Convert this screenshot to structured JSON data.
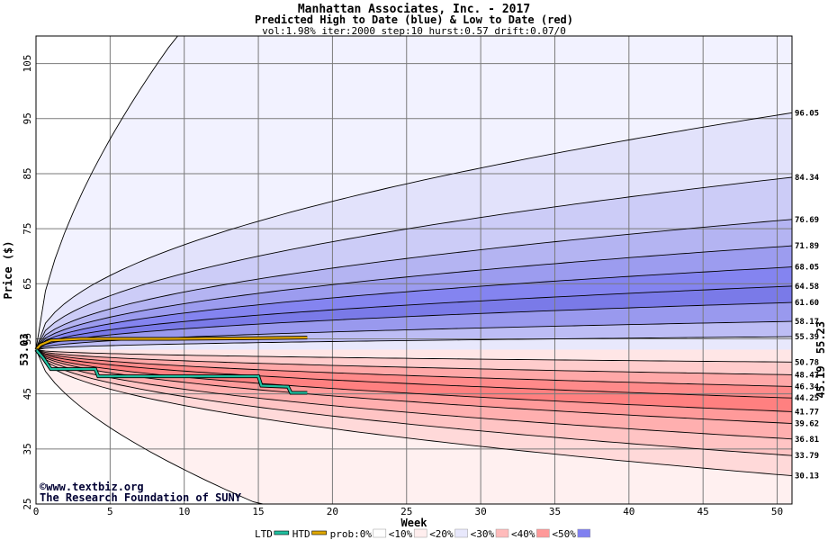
{
  "chart_data": {
    "type": "area",
    "title": "Manhattan Associates, Inc. - 2017",
    "subtitle": "Predicted High to Date (blue) &  Low to Date (red)",
    "params": "vol:1.98% iter:2000 step:10 hurst:0.57 drift:0.07/0",
    "xlabel": "Week",
    "ylabel": "Price ($)",
    "xlim": [
      0,
      51
    ],
    "ylim": [
      25,
      110
    ],
    "x_ticks": [
      0,
      5,
      10,
      15,
      20,
      25,
      30,
      35,
      40,
      45,
      50
    ],
    "y_ticks": [
      25,
      35,
      45,
      55,
      65,
      75,
      85,
      95,
      105
    ],
    "grid": true,
    "start_price": 53.03,
    "start_price_label": "53.03",
    "current_high": 55.23,
    "current_high_label": "55.23",
    "current_low": 45.19,
    "current_low_label": "45.19",
    "high_percentile_levels": [
      {
        "label": "96.05",
        "value": 96.05
      },
      {
        "label": "84.34",
        "value": 84.34
      },
      {
        "label": "76.69",
        "value": 76.69
      },
      {
        "label": "71.89",
        "value": 71.89
      },
      {
        "label": "68.05",
        "value": 68.05
      },
      {
        "label": "64.58",
        "value": 64.58
      },
      {
        "label": "61.60",
        "value": 61.6
      },
      {
        "label": "58.17",
        "value": 58.17
      },
      {
        "label": "55.39",
        "value": 55.39
      }
    ],
    "high_outer_max": 110,
    "low_percentile_levels": [
      {
        "label": "50.78",
        "value": 50.78
      },
      {
        "label": "48.47",
        "value": 48.47
      },
      {
        "label": "46.34",
        "value": 46.34
      },
      {
        "label": "44.25",
        "value": 44.25
      },
      {
        "label": "41.77",
        "value": 41.77
      },
      {
        "label": "39.62",
        "value": 39.62
      },
      {
        "label": "36.81",
        "value": 36.81
      },
      {
        "label": "33.79",
        "value": 33.79
      },
      {
        "label": "30.13",
        "value": 30.13
      }
    ],
    "low_outer_min": 25,
    "low_outer_end_week": 15,
    "actual_high_to_date": {
      "name": "HTD",
      "color": "#e0a800",
      "points": [
        [
          0,
          53.03
        ],
        [
          0.3,
          53.9
        ],
        [
          1,
          54.7
        ],
        [
          3,
          55.0
        ],
        [
          9,
          55.0
        ],
        [
          14,
          55.1
        ],
        [
          18.3,
          55.23
        ]
      ]
    },
    "actual_low_to_date": {
      "name": "LTD",
      "color": "#20c0a0",
      "points": [
        [
          0,
          53.03
        ],
        [
          0.5,
          51.5
        ],
        [
          1,
          49.5
        ],
        [
          4,
          49.5
        ],
        [
          4.2,
          48.2
        ],
        [
          15,
          48.2
        ],
        [
          15.2,
          46.5
        ],
        [
          17,
          46.3
        ],
        [
          17.2,
          45.19
        ],
        [
          18.3,
          45.19
        ]
      ]
    },
    "band_colors": {
      "high": [
        "#f2f2ff",
        "#e2e2fb",
        "#ccccf7",
        "#b4b4f2",
        "#9c9cef",
        "#8484f0",
        "#7a7ae8",
        "#9999ee",
        "#bdbdf5",
        "#e8e8fc"
      ],
      "low": [
        "#fff0f0",
        "#ffd9d9",
        "#ffc4c4",
        "#ffafaf",
        "#ff9a9a",
        "#ff8080",
        "#ff8a8a",
        "#ffa8a8",
        "#ffcccc",
        "#ffe6e6"
      ]
    },
    "credit_line1": "©www.textbiz.org",
    "credit_line2": "The Research Foundation of SUNY",
    "legend": [
      {
        "label": "LTD",
        "color": "#20c0a0"
      },
      {
        "label": "HTD",
        "color": "#e0a800"
      },
      {
        "label": "prob:0%",
        "color": "#ffffff"
      },
      {
        "label": "<10%",
        "color": "#ffeeee"
      },
      {
        "label": "<20%",
        "color": "#e8e8fc"
      },
      {
        "label": "<30%",
        "color": "#ffbbbb"
      },
      {
        "label": "<40%",
        "color": "#ff9999"
      },
      {
        "label": "<50%",
        "color": "#8080f0"
      }
    ]
  }
}
